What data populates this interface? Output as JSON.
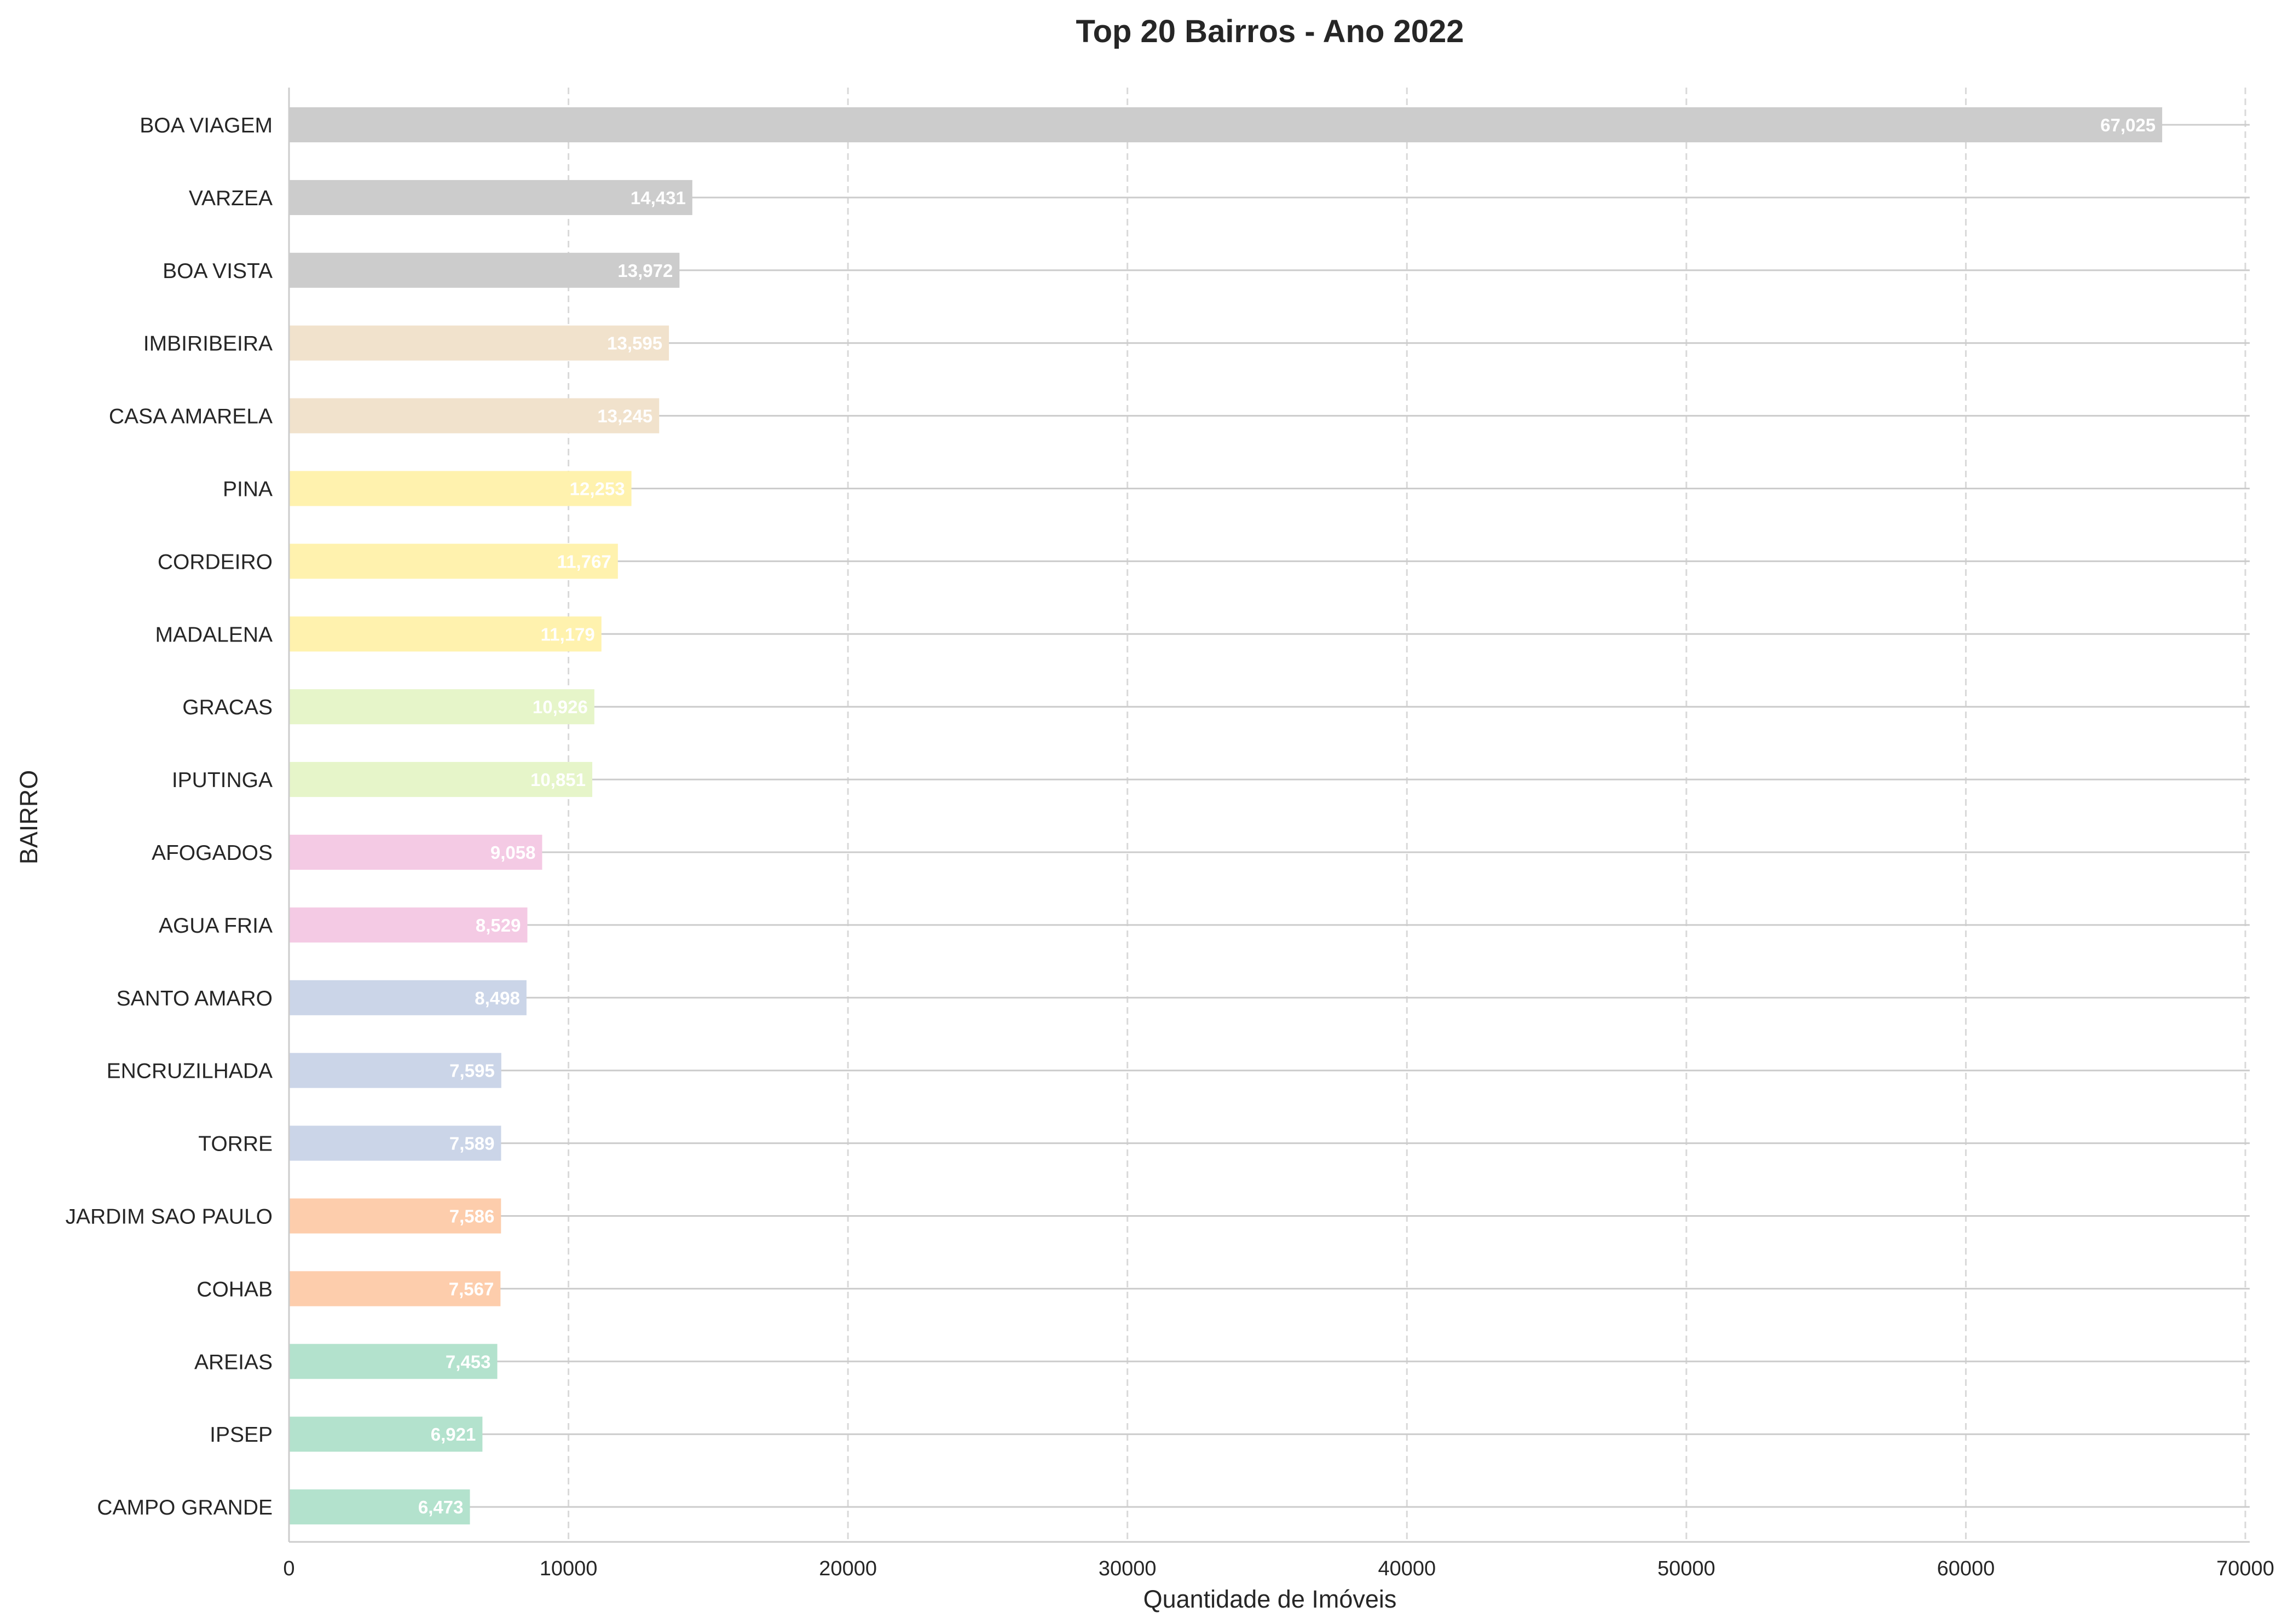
{
  "chart_data": {
    "type": "bar",
    "orientation": "horizontal",
    "title": "Top 20 Bairros - Ano 2022",
    "xlabel": "Quantidade de Imóveis",
    "ylabel": "BAIRRO",
    "xlim": [
      0,
      70000
    ],
    "xticks": [
      "0",
      "10000",
      "20000",
      "30000",
      "40000",
      "50000",
      "60000",
      "70000"
    ],
    "grid": "x dashed, y solid",
    "legend": "none",
    "categories": [
      "BOA VIAGEM",
      "VARZEA",
      "BOA VISTA",
      "IMBIRIBEIRA",
      "CASA AMARELA",
      "PINA",
      "CORDEIRO",
      "MADALENA",
      "GRACAS",
      "IPUTINGA",
      "AFOGADOS",
      "AGUA FRIA",
      "SANTO AMARO",
      "ENCRUZILHADA",
      "TORRE",
      "JARDIM SAO PAULO",
      "COHAB",
      "AREIAS",
      "IPSEP",
      "CAMPO GRANDE"
    ],
    "values": [
      67025,
      14431,
      13972,
      13595,
      13245,
      12253,
      11767,
      11179,
      10926,
      10851,
      9058,
      8529,
      8498,
      7595,
      7589,
      7586,
      7567,
      7453,
      6921,
      6473
    ],
    "value_labels": [
      "67,025",
      "14,431",
      "13,972",
      "13,595",
      "13,245",
      "12,253",
      "11,767",
      "11,179",
      "10,926",
      "10,851",
      "9,058",
      "8,529",
      "8,498",
      "7,595",
      "7,589",
      "7,586",
      "7,567",
      "7,453",
      "6,921",
      "6,473"
    ],
    "bar_colors": [
      "#cccccc",
      "#cccccc",
      "#cccccc",
      "#f1e2cc",
      "#f1e2cc",
      "#fff2ae",
      "#fff2ae",
      "#fff2ae",
      "#e6f5c9",
      "#e6f5c9",
      "#f4cae4",
      "#f4cae4",
      "#cbd5e8",
      "#cbd5e8",
      "#cbd5e8",
      "#fdcdac",
      "#fdcdac",
      "#b3e2cd",
      "#b3e2cd",
      "#b3e2cd"
    ]
  }
}
